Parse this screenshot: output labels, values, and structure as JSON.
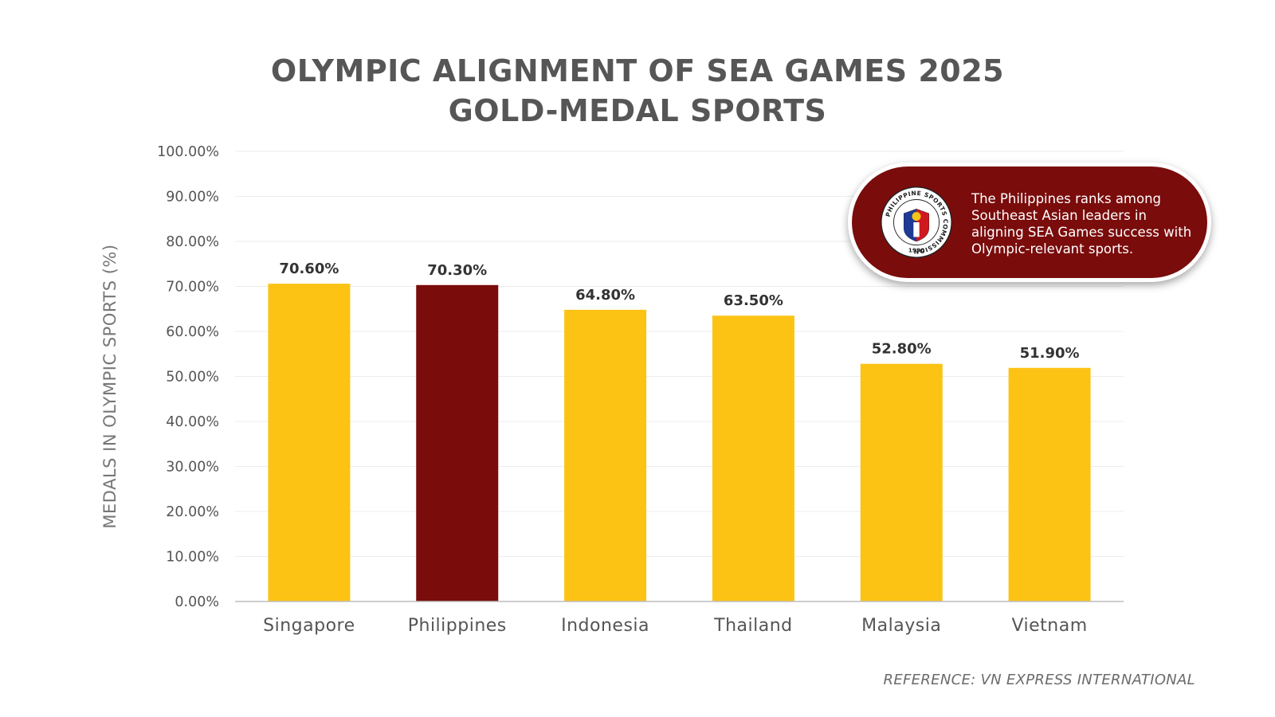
{
  "chart_data": {
    "type": "bar",
    "title_lines": [
      "OLYMPIC ALIGNMENT OF SEA GAMES 2025",
      "GOLD-MEDAL SPORTS"
    ],
    "xlabel": "",
    "ylabel": "MEDALS IN OLYMPIC SPORTS  (%)",
    "categories": [
      "Singapore",
      "Philippines",
      "Indonesia",
      "Thailand",
      "Malaysia",
      "Vietnam"
    ],
    "values": [
      70.6,
      70.3,
      64.8,
      63.5,
      52.8,
      51.9
    ],
    "data_labels": [
      "70.60%",
      "70.30%",
      "64.80%",
      "63.50%",
      "52.80%",
      "51.90%"
    ],
    "highlight": "Philippines",
    "ylim": [
      0,
      100
    ],
    "yticks": [
      0,
      10,
      20,
      30,
      40,
      50,
      60,
      70,
      80,
      90,
      100
    ],
    "ytick_labels": [
      "0.00%",
      "10.00%",
      "20.00%",
      "30.00%",
      "40.00%",
      "50.00%",
      "60.00%",
      "70.00%",
      "80.00%",
      "90.00%",
      "100.00%"
    ],
    "grid": true,
    "legend": "none"
  },
  "colors": {
    "bar": "#fcc314",
    "highlight_bar": "#7a0c0c",
    "title": "#565656",
    "axis_text": "#555555",
    "grid": "#ececec"
  },
  "callout": {
    "text": "The Philippines ranks among Southeast Asian leaders in aligning SEA Games success with Olympic-relevant sports.",
    "logo_name": "philippine-sports-commission-seal",
    "logo_text": "PHILIPPINE SPORTS COMMISSION",
    "logo_year": "1990"
  },
  "reference": "REFERENCE: VN EXPRESS INTERNATIONAL"
}
